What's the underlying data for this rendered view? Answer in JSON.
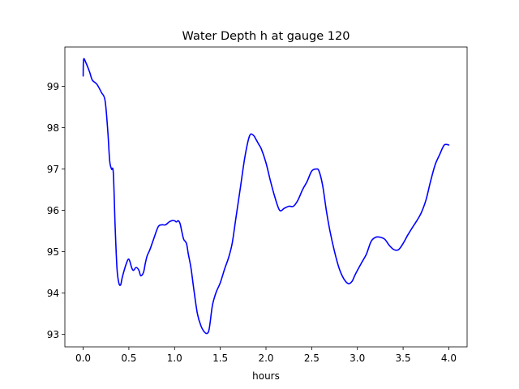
{
  "chart_data": {
    "type": "line",
    "title": "Water Depth h at gauge 120",
    "xlabel": "hours",
    "ylabel": "",
    "xlim": [
      -0.2,
      4.2
    ],
    "ylim": [
      92.7,
      99.95
    ],
    "grid": false,
    "legend": "none",
    "xticks": [
      0.0,
      0.5,
      1.0,
      1.5,
      2.0,
      2.5,
      3.0,
      3.5,
      4.0
    ],
    "xtick_labels": [
      "0.0",
      "0.5",
      "1.0",
      "1.5",
      "2.0",
      "2.5",
      "3.0",
      "3.5",
      "4.0"
    ],
    "yticks": [
      93,
      94,
      95,
      96,
      97,
      98,
      99
    ],
    "ytick_labels": [
      "93",
      "94",
      "95",
      "96",
      "97",
      "98",
      "99"
    ],
    "colors": {
      "series": "#0000ff",
      "axes": "#000000",
      "background": "#ffffff"
    },
    "series": [
      {
        "x": [
          0.0,
          0.005,
          0.03,
          0.07,
          0.1,
          0.15,
          0.2,
          0.24,
          0.27,
          0.29,
          0.31,
          0.33,
          0.35,
          0.37,
          0.39,
          0.41,
          0.43,
          0.47,
          0.5,
          0.53,
          0.55,
          0.58,
          0.61,
          0.63,
          0.66,
          0.68,
          0.7,
          0.73,
          0.77,
          0.82,
          0.86,
          0.9,
          0.94,
          0.97,
          1.0,
          1.02,
          1.04,
          1.06,
          1.08,
          1.1,
          1.13,
          1.15,
          1.18,
          1.21,
          1.25,
          1.29,
          1.33,
          1.36,
          1.38,
          1.41,
          1.43,
          1.46,
          1.5,
          1.55,
          1.59,
          1.63,
          1.67,
          1.72,
          1.77,
          1.82,
          1.86,
          1.89,
          1.92,
          1.95,
          2.0,
          2.05,
          2.1,
          2.15,
          2.2,
          2.25,
          2.3,
          2.35,
          2.4,
          2.45,
          2.5,
          2.55,
          2.58,
          2.62,
          2.66,
          2.7,
          2.75,
          2.8,
          2.85,
          2.9,
          2.94,
          2.97,
          3.0,
          3.05,
          3.1,
          3.15,
          3.2,
          3.25,
          3.3,
          3.35,
          3.4,
          3.45,
          3.5,
          3.55,
          3.6,
          3.65,
          3.7,
          3.75,
          3.8,
          3.85,
          3.9,
          3.95,
          4.0
        ],
        "values": [
          99.25,
          99.65,
          99.57,
          99.35,
          99.15,
          99.05,
          98.85,
          98.65,
          97.9,
          97.2,
          97.0,
          96.9,
          95.6,
          94.6,
          94.25,
          94.2,
          94.4,
          94.7,
          94.82,
          94.62,
          94.55,
          94.62,
          94.55,
          94.42,
          94.5,
          94.72,
          94.9,
          95.05,
          95.3,
          95.6,
          95.65,
          95.65,
          95.72,
          95.75,
          95.75,
          95.72,
          95.75,
          95.68,
          95.48,
          95.3,
          95.2,
          94.95,
          94.6,
          94.1,
          93.5,
          93.2,
          93.05,
          93.03,
          93.15,
          93.65,
          93.85,
          94.05,
          94.25,
          94.6,
          94.85,
          95.2,
          95.8,
          96.55,
          97.3,
          97.8,
          97.82,
          97.72,
          97.6,
          97.48,
          97.15,
          96.7,
          96.3,
          96.0,
          96.05,
          96.1,
          96.1,
          96.25,
          96.5,
          96.7,
          96.95,
          97.0,
          96.95,
          96.6,
          96.0,
          95.5,
          95.0,
          94.6,
          94.35,
          94.23,
          94.28,
          94.42,
          94.55,
          94.75,
          94.95,
          95.25,
          95.35,
          95.35,
          95.3,
          95.15,
          95.05,
          95.05,
          95.2,
          95.4,
          95.58,
          95.75,
          95.95,
          96.25,
          96.7,
          97.1,
          97.35,
          97.58,
          97.58
        ]
      }
    ]
  }
}
